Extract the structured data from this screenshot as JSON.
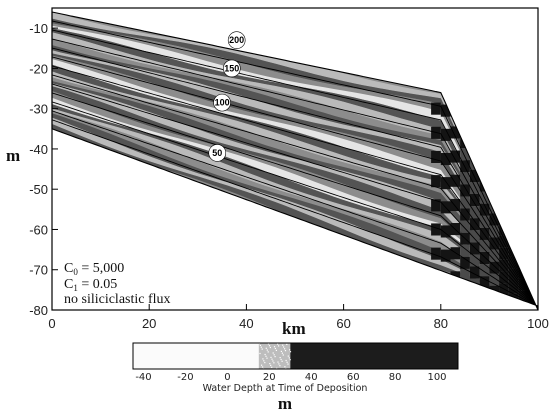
{
  "chart_data": {
    "type": "area",
    "title": "",
    "xlabel": "km",
    "ylabel": "m",
    "xlim": [
      0,
      100
    ],
    "ylim": [
      -80,
      -5
    ],
    "x_ticks": [
      "0",
      "20",
      "40",
      "60",
      "80",
      "100"
    ],
    "y_ticks": [
      "-10",
      "-20",
      "-30",
      "-40",
      "-50",
      "-60",
      "-70",
      "-80"
    ],
    "contours": [
      {
        "label": "200",
        "x": 38,
        "y": -13
      },
      {
        "label": "150",
        "x": 37,
        "y": -20
      },
      {
        "label": "100",
        "x": 35,
        "y": -28.5
      },
      {
        "label": "50",
        "x": 34,
        "y": -41
      }
    ],
    "annotations": {
      "c0_main": "C",
      "c0_sub": "0",
      "c0_value": " = 5,000",
      "c1_main": "C",
      "c1_sub": "1",
      "c1_value": " = 0.05",
      "flux_note": "no siliciclastic flux"
    },
    "colorbar": {
      "title": "Water Depth at Time of Deposition",
      "unit_label": "m",
      "tick_labels": [
        "-40",
        "-20",
        "0",
        "20",
        "40",
        "60",
        "80",
        "100"
      ],
      "range": [
        -45,
        110
      ],
      "bands": [
        {
          "from": -45,
          "to": 15,
          "color": "#fbfbfb"
        },
        {
          "from": 15,
          "to": 30,
          "color": "#bdbdbd"
        },
        {
          "from": 30,
          "to": 110,
          "color": "#1c1c1c"
        }
      ]
    },
    "colors": {
      "shallow": "#f4f4f4",
      "light_grey": "#c2c2c2",
      "mid_grey": "#8c8c8c",
      "dark_grey": "#4a4a4a",
      "deep": "#141414"
    }
  }
}
